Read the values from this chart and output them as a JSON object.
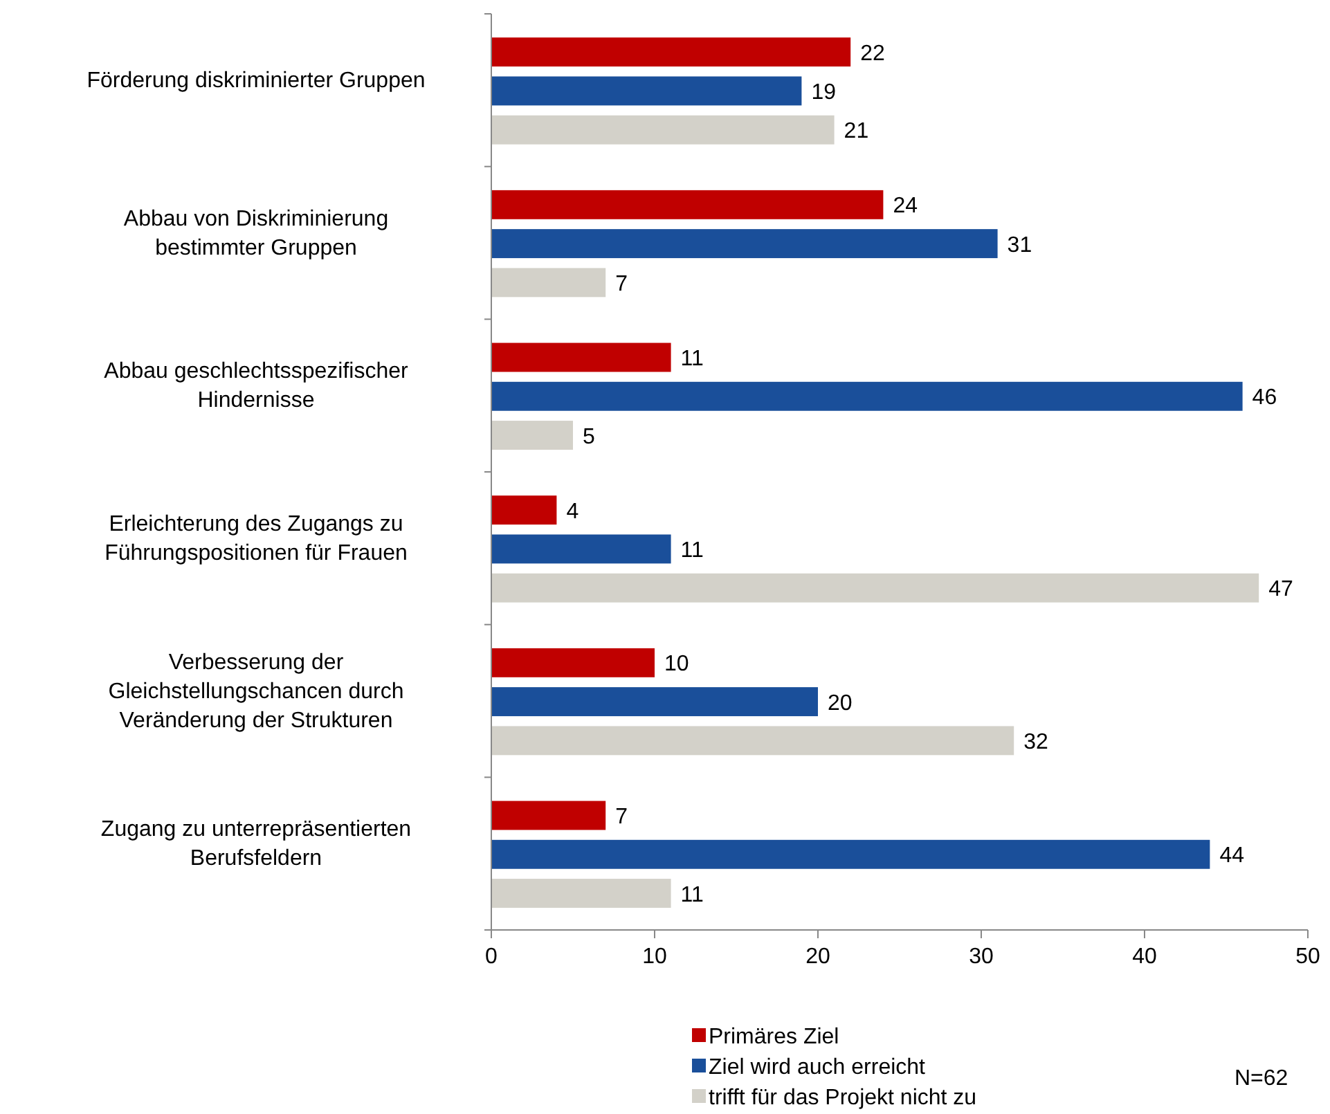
{
  "chart_data": {
    "type": "bar",
    "orientation": "horizontal",
    "categories": [
      "Förderung diskriminierter Gruppen",
      "Abbau von Diskriminierung\nbestimmter Gruppen",
      "Abbau geschlechtsspezifischer\nHindernisse",
      "Erleichterung des Zugangs zu\nFührungspositionen für Frauen",
      "Verbesserung der\nGleichstellungschancen durch\nVeränderung der Strukturen",
      "Zugang zu unterrepräsentierten\nBerufsfeldern"
    ],
    "series": [
      {
        "name": "Primäres Ziel",
        "color": "#c00000",
        "values": [
          22,
          24,
          11,
          4,
          10,
          7
        ]
      },
      {
        "name": "Ziel wird auch erreicht",
        "color": "#1a4f9a",
        "values": [
          19,
          31,
          46,
          11,
          20,
          44
        ]
      },
      {
        "name": "trifft für das Projekt nicht zu",
        "color": "#d3d1c9",
        "values": [
          21,
          7,
          5,
          47,
          32,
          11
        ]
      }
    ],
    "xlim": [
      0,
      50
    ],
    "xticks": [
      0,
      10,
      20,
      30,
      40,
      50
    ],
    "data_labels": true,
    "legend": "bottom",
    "grid": false,
    "annotations": [
      "N=62"
    ]
  }
}
